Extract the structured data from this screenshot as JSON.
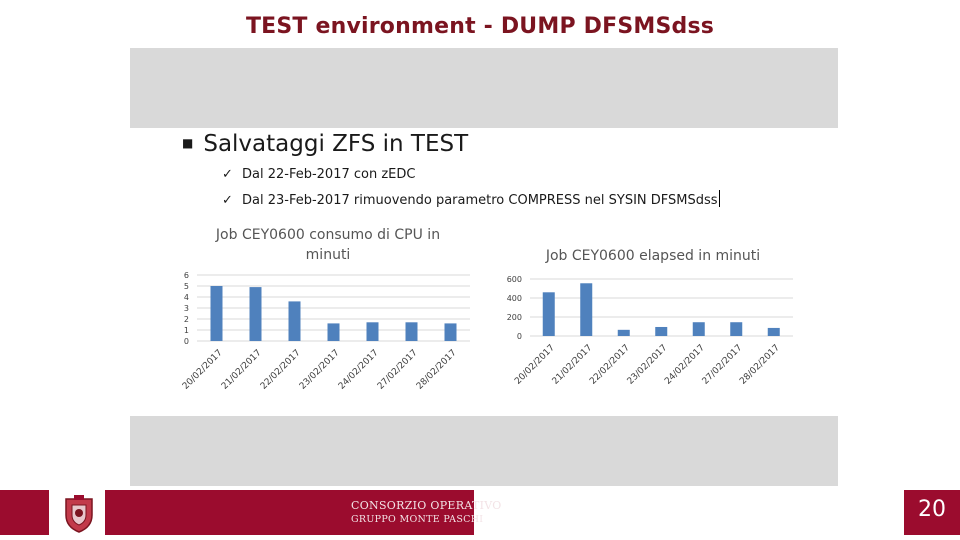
{
  "slide": {
    "title": "TEST environment - DUMP DFSMSdss",
    "heading": "Salvataggi ZFS in TEST",
    "heading_bullet": "■",
    "check_mark": "✓",
    "bullets": [
      "Dal 22-Feb-2017 con zEDC",
      "Dal 23-Feb-2017 rimuovendo parametro COMPRESS nel SYSIN DFSMSdss"
    ],
    "page_number": "20"
  },
  "footer": {
    "logo_line1": "CONSORZIO OPERATIVO",
    "logo_line2": "GRUPPO MONTE PASCHI",
    "emblem_icon": "crest-icon"
  },
  "colors": {
    "title": "#7b1420",
    "footer_bar": "#9b0c2e",
    "gray_band": "#d9d9d9",
    "bar": "#4f81bd"
  },
  "chart_data": [
    {
      "type": "bar",
      "title": "Job CEY0600 consumo di CPU in minuti",
      "title_lines": [
        "Job CEY0600 consumo di CPU in",
        "minuti"
      ],
      "categories": [
        "20/02/2017",
        "21/02/2017",
        "22/02/2017",
        "23/02/2017",
        "24/02/2017",
        "27/02/2017",
        "28/02/2017"
      ],
      "values": [
        5.0,
        4.9,
        3.6,
        1.6,
        1.7,
        1.7,
        1.6
      ],
      "yticks": [
        "0",
        "1",
        "2",
        "3",
        "4",
        "5",
        "6"
      ],
      "ylim": [
        0,
        6
      ],
      "grid": true
    },
    {
      "type": "bar",
      "title": "Job CEY0600 elapsed in minuti",
      "title_lines": [
        "Job CEY0600 elapsed in minuti"
      ],
      "categories": [
        "20/02/2017",
        "21/02/2017",
        "22/02/2017",
        "23/02/2017",
        "24/02/2017",
        "27/02/2017",
        "28/02/2017"
      ],
      "values": [
        460,
        555,
        65,
        95,
        145,
        145,
        85
      ],
      "yticks": [
        "0",
        "200",
        "400",
        "600"
      ],
      "ylim": [
        0,
        600
      ],
      "grid": true
    }
  ]
}
